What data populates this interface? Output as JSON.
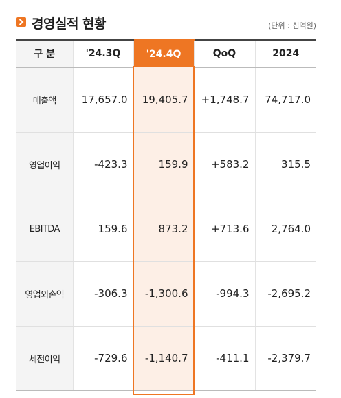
{
  "header": {
    "title": "경영실적 현황",
    "unit": "(단위 : 십억원)",
    "icon": "chevron-right-icon",
    "accent_color": "#ee7623"
  },
  "table": {
    "columns": [
      "구 분",
      "'24.3Q",
      "'24.4Q",
      "QoQ",
      "2024"
    ],
    "highlight_column": "'24.4Q",
    "rows": [
      {
        "label": "매출액",
        "q3": "17,657.0",
        "q4": "19,405.7",
        "qoq": "+1,748.7",
        "y2024": "74,717.0"
      },
      {
        "label": "영업이익",
        "q3": "-423.3",
        "q4": "159.9",
        "qoq": "+583.2",
        "y2024": "315.5"
      },
      {
        "label": "EBITDA",
        "q3": "159.6",
        "q4": "873.2",
        "qoq": "+713.6",
        "y2024": "2,764.0"
      },
      {
        "label": "영업외손익",
        "q3": "-306.3",
        "q4": "-1,300.6",
        "qoq": "-994.3",
        "y2024": "-2,695.2"
      },
      {
        "label": "세전이익",
        "q3": "-729.6",
        "q4": "-1,140.7",
        "qoq": "-411.1",
        "y2024": "-2,379.7"
      }
    ]
  }
}
